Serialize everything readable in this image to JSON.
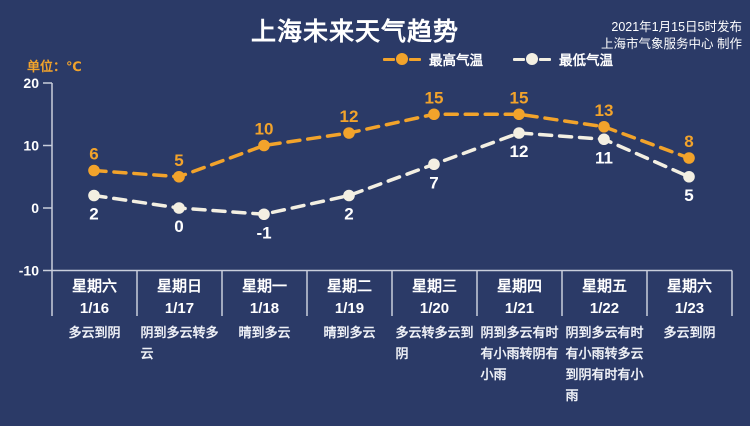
{
  "header": {
    "title": "上海未来天气趋势",
    "publish_line1": "2021年1月15日5时发布",
    "publish_line2": "上海市气象服务中心 制作"
  },
  "unit_label": "单位：℃",
  "legend": [
    {
      "label": "最高气温",
      "color": "#f2a32b"
    },
    {
      "label": "最低气温",
      "color": "#f3efe2"
    }
  ],
  "chart_data": {
    "type": "line",
    "categories": [
      "星期六 1/16",
      "星期日 1/17",
      "星期一 1/18",
      "星期二 1/19",
      "星期三 1/20",
      "星期四 1/21",
      "星期五 1/22",
      "星期六 1/23"
    ],
    "series": [
      {
        "name": "最高气温",
        "color": "#f2a32b",
        "values": [
          6,
          5,
          10,
          12,
          15,
          15,
          13,
          8
        ]
      },
      {
        "name": "最低气温",
        "color": "#f3efe2",
        "values": [
          2,
          0,
          -1,
          2,
          7,
          12,
          11,
          5
        ]
      }
    ],
    "title": "上海未来天气趋势",
    "ylabel": "单位：℃",
    "yticks": [
      20,
      10,
      0,
      -10
    ],
    "ylim": [
      -10,
      20
    ],
    "grid": false,
    "line_style": "dashed",
    "legend_position": "top"
  },
  "days": [
    {
      "weekday": "星期六",
      "date": "1/16",
      "weather": "多云到阴"
    },
    {
      "weekday": "星期日",
      "date": "1/17",
      "weather": "阴到多云转多云"
    },
    {
      "weekday": "星期一",
      "date": "1/18",
      "weather": "晴到多云"
    },
    {
      "weekday": "星期二",
      "date": "1/19",
      "weather": "晴到多云"
    },
    {
      "weekday": "星期三",
      "date": "1/20",
      "weather": "多云转多云到阴"
    },
    {
      "weekday": "星期四",
      "date": "1/21",
      "weather": "阴到多云有时有小雨转阴有小雨"
    },
    {
      "weekday": "星期五",
      "date": "1/22",
      "weather": "阴到多云有时有小雨转多云到阴有时有小雨"
    },
    {
      "weekday": "星期六",
      "date": "1/23",
      "weather": "多云到阴"
    }
  ],
  "colors": {
    "background": "#2b3a67",
    "accent_orange": "#f2a32b",
    "series_low": "#f3efe2",
    "axis_line": "#c9cedc",
    "text": "#ffffff"
  }
}
